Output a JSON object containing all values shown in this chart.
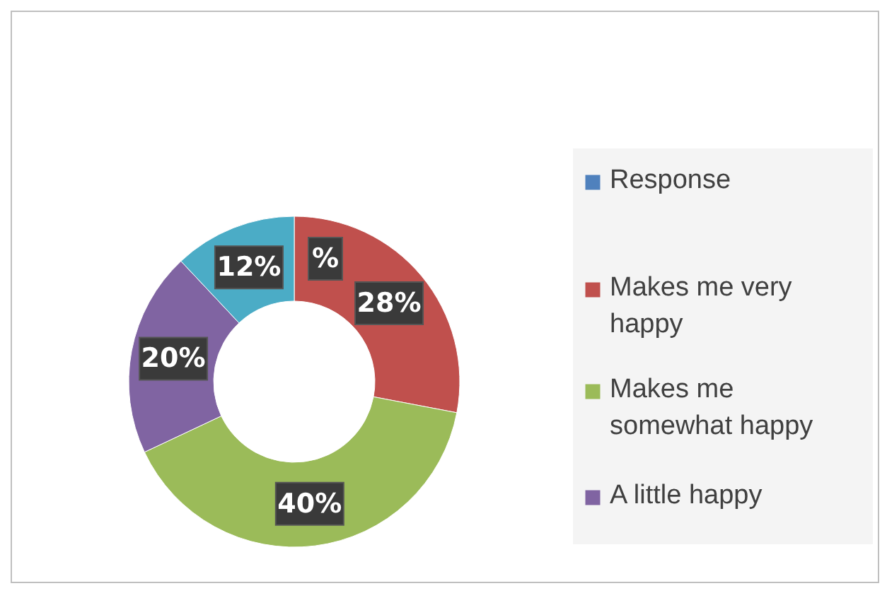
{
  "chart_data": {
    "type": "donut",
    "categories": [
      "Response",
      "Makes me very happy",
      "Makes me somewhat happy",
      "A little happy",
      null
    ],
    "values": [
      0,
      28,
      40,
      20,
      12
    ],
    "colors": [
      "#4f81bd",
      "#c0504d",
      "#9bbb59",
      "#8064a2",
      "#4bacc6"
    ],
    "value_labels": [
      "%",
      "28%",
      "40%",
      "20%",
      "12%"
    ],
    "legend": "right"
  }
}
